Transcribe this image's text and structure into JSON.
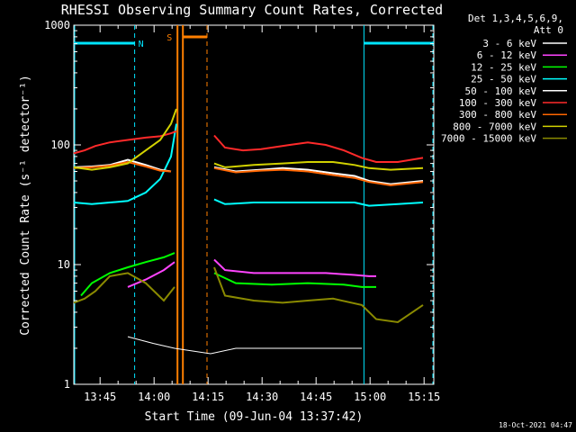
{
  "chart_data": {
    "type": "line",
    "title": "RHESSI Observing Summary Count Rates, Corrected",
    "xlabel": "Start Time (09-Jun-04 13:37:42)",
    "ylabel": "Corrected Count Rate (s⁻¹ detector⁻¹)",
    "yscale": "log",
    "ylim": [
      1,
      1000
    ],
    "xlim_minutes": [
      0,
      100
    ],
    "x_start": "13:37:42",
    "x_tick_labels": [
      "13:45",
      "14:00",
      "14:15",
      "14:30",
      "14:45",
      "15:00",
      "15:15"
    ],
    "x_tick_minutes": [
      7.3,
      22.3,
      37.3,
      52.3,
      67.3,
      82.3,
      97.3
    ],
    "y_tick_labels": [
      "1",
      "10",
      "100",
      "1000"
    ],
    "y_tick_values": [
      1,
      10,
      100,
      1000
    ],
    "grid": false,
    "legend_header": [
      "Det 1,3,4,5,6,9,",
      "Att 0"
    ],
    "gaps_minutes": [
      [
        28.8,
        38.4
      ]
    ],
    "series": [
      {
        "name": "3 - 6 keV",
        "color": "#ffffff",
        "x": [
          0,
          14,
          15,
          22,
          28,
          38,
          45,
          60,
          75,
          80,
          81
        ],
        "y": [
          null,
          null,
          2.5,
          2.2,
          2.0,
          1.8,
          2.0,
          2.0,
          2.0,
          2.0,
          null
        ]
      },
      {
        "name": "6 - 12 keV",
        "color": "#ff44ff",
        "x": [
          14,
          15,
          20,
          25,
          28,
          39,
          42,
          50,
          60,
          70,
          78,
          82,
          84
        ],
        "y": [
          null,
          6.5,
          7.5,
          9.0,
          10.5,
          11,
          9.0,
          8.5,
          8.5,
          8.5,
          8.2,
          8.0,
          8.0
        ]
      },
      {
        "name": "12 - 25 keV",
        "color": "#00ff00",
        "x": [
          0,
          2,
          5,
          10,
          15,
          20,
          25,
          28,
          39,
          45,
          55,
          65,
          75,
          80,
          84
        ],
        "y": [
          null,
          5.5,
          7.0,
          8.5,
          9.5,
          10.5,
          11.5,
          12.5,
          8.5,
          7.0,
          6.8,
          7.0,
          6.8,
          6.5,
          6.5
        ]
      },
      {
        "name": "25 - 50 keV",
        "color": "#00ffff",
        "x": [
          0,
          5,
          10,
          15,
          20,
          24,
          27,
          28.5,
          39,
          42,
          50,
          60,
          70,
          78,
          82,
          90,
          97
        ],
        "y": [
          33,
          32,
          33,
          34,
          40,
          52,
          80,
          150,
          35,
          32,
          33,
          33,
          33,
          33,
          31,
          32,
          33
        ]
      },
      {
        "name": "50 - 100 keV",
        "color": "#ffffff",
        "x": [
          0,
          5,
          10,
          15,
          20,
          24,
          27,
          39,
          45,
          52,
          58,
          65,
          72,
          78,
          82,
          88,
          97
        ],
        "y": [
          65,
          66,
          68,
          75,
          68,
          62,
          60,
          65,
          60,
          62,
          64,
          62,
          58,
          55,
          50,
          47,
          50
        ]
      },
      {
        "name": "100 - 300 keV",
        "color": "#ff2a2a",
        "x": [
          0,
          3,
          6,
          10,
          15,
          20,
          24,
          27,
          28.5,
          39,
          42,
          47,
          52,
          56,
          60,
          65,
          70,
          75,
          80,
          84,
          90,
          97
        ],
        "y": [
          85,
          90,
          98,
          105,
          110,
          115,
          118,
          125,
          130,
          120,
          95,
          90,
          92,
          96,
          100,
          105,
          100,
          90,
          78,
          72,
          72,
          78
        ]
      },
      {
        "name": "300 - 800 keV",
        "color": "#ff6600",
        "x": [
          0,
          5,
          10,
          15,
          20,
          24,
          27,
          39,
          45,
          52,
          58,
          65,
          72,
          78,
          82,
          88,
          97
        ],
        "y": [
          64,
          65,
          67,
          72,
          66,
          61,
          60,
          64,
          59,
          61,
          62,
          60,
          56,
          53,
          49,
          46,
          49
        ]
      },
      {
        "name": "800 - 7000 keV",
        "color": "#d2d200",
        "x": [
          0,
          5,
          10,
          15,
          20,
          24,
          27,
          28.5,
          39,
          42,
          50,
          58,
          65,
          72,
          78,
          82,
          88,
          97
        ],
        "y": [
          65,
          62,
          65,
          70,
          90,
          110,
          150,
          200,
          70,
          65,
          68,
          70,
          72,
          72,
          68,
          64,
          62,
          64
        ]
      },
      {
        "name": "7000 - 15000 keV",
        "color": "#8a8a00",
        "x": [
          0,
          3,
          6,
          10,
          15,
          20,
          25,
          28,
          39,
          42,
          50,
          58,
          65,
          72,
          80,
          84,
          90,
          97
        ],
        "y": [
          4.8,
          5.2,
          6.0,
          8.0,
          8.5,
          7.0,
          5.0,
          6.5,
          9.5,
          5.5,
          5.0,
          4.8,
          5.0,
          5.2,
          4.6,
          3.5,
          3.3,
          4.6
        ]
      }
    ],
    "bars": [
      {
        "label": "N",
        "color": "#00e5ff",
        "intervals": [
          [
            0,
            16.9
          ],
          [
            80.6,
            100
          ]
        ],
        "style": "night"
      },
      {
        "label": "S",
        "color": "#ff7f00",
        "intervals": [
          [
            28.8,
            37.0
          ]
        ],
        "style": "saa"
      }
    ]
  },
  "footer_date": "18-Oct-2021 04:47"
}
